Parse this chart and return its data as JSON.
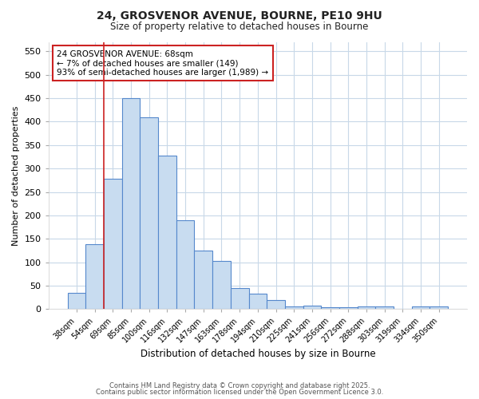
{
  "title1": "24, GROSVENOR AVENUE, BOURNE, PE10 9HU",
  "title2": "Size of property relative to detached houses in Bourne",
  "xlabel": "Distribution of detached houses by size in Bourne",
  "ylabel": "Number of detached properties",
  "categories": [
    "38sqm",
    "54sqm",
    "69sqm",
    "85sqm",
    "100sqm",
    "116sqm",
    "132sqm",
    "147sqm",
    "163sqm",
    "178sqm",
    "194sqm",
    "210sqm",
    "225sqm",
    "241sqm",
    "256sqm",
    "272sqm",
    "288sqm",
    "303sqm",
    "319sqm",
    "334sqm",
    "350sqm"
  ],
  "values": [
    35,
    138,
    278,
    450,
    410,
    327,
    190,
    125,
    103,
    45,
    33,
    19,
    6,
    7,
    4,
    4,
    5,
    5,
    0,
    5,
    5
  ],
  "bar_color": "#c8dcf0",
  "bar_edge_color": "#5588cc",
  "vline_index": 2,
  "vline_color": "#cc2222",
  "ylim": [
    0,
    570
  ],
  "yticks": [
    0,
    50,
    100,
    150,
    200,
    250,
    300,
    350,
    400,
    450,
    500,
    550
  ],
  "annotation_text": "24 GROSVENOR AVENUE: 68sqm\n← 7% of detached houses are smaller (149)\n93% of semi-detached houses are larger (1,989) →",
  "annotation_box_color": "#cc2222",
  "annotation_box_fill": "#ffffff",
  "footer1": "Contains HM Land Registry data © Crown copyright and database right 2025.",
  "footer2": "Contains public sector information licensed under the Open Government Licence 3.0.",
  "background_color": "#ffffff",
  "plot_bg_color": "#ffffff",
  "grid_color": "#c8d8e8"
}
